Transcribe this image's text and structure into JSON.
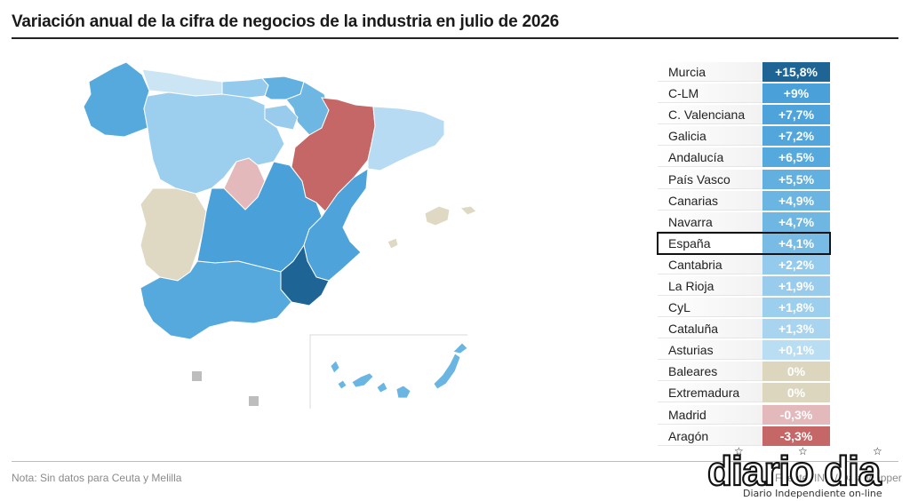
{
  "header": {
    "title": "Variación anual de la cifra de negocios de la industria en julio de 2026"
  },
  "colors": {
    "dark_blue": "#1e6596",
    "mid_blue": "#4aa0d8",
    "blue": "#5aaee0",
    "light_blue": "#8ec7ea",
    "pale_blue": "#b7dbf2",
    "very_pale_blue": "#cce5f5",
    "neutral": "#dfd8c2",
    "light_red": "#e3b9bb",
    "red": "#c56766",
    "islands_box": "#d9d9d9",
    "no_data": "#bdbdbd"
  },
  "ranking": [
    {
      "region": "Murcia",
      "value": "+15,8%",
      "color": "#1e6596"
    },
    {
      "region": "C-LM",
      "value": "+9%",
      "color": "#4aa0d8"
    },
    {
      "region": "C. Valenciana",
      "value": "+7,7%",
      "color": "#4ea3da"
    },
    {
      "region": "Galicia",
      "value": "+7,2%",
      "color": "#52a6db"
    },
    {
      "region": "Andalucía",
      "value": "+6,5%",
      "color": "#56a9dd"
    },
    {
      "region": "País Vasco",
      "value": "+5,5%",
      "color": "#62b0e0"
    },
    {
      "region": "Canarias",
      "value": "+4,9%",
      "color": "#6ab5e2"
    },
    {
      "region": "Navarra",
      "value": "+4,7%",
      "color": "#6eb7e3"
    },
    {
      "region": "España",
      "value": "+4,1%",
      "color": "#78bce5",
      "highlight": true
    },
    {
      "region": "Cantabria",
      "value": "+2,2%",
      "color": "#94caec"
    },
    {
      "region": "La Rioja",
      "value": "+1,9%",
      "color": "#99ccec"
    },
    {
      "region": "CyL",
      "value": "+1,8%",
      "color": "#9ccfee"
    },
    {
      "region": "Cataluña",
      "value": "+1,3%",
      "color": "#a8d4ef"
    },
    {
      "region": "Asturias",
      "value": "+0,1%",
      "color": "#b9ddf3"
    },
    {
      "region": "Baleares",
      "value": "0%",
      "color": "#ddd6bf"
    },
    {
      "region": "Extremadura",
      "value": "0%",
      "color": "#ddd6bf"
    },
    {
      "region": "Madrid",
      "value": "-0,3%",
      "color": "#e3b9bb"
    },
    {
      "region": "Aragón",
      "value": "-3,3%",
      "color": "#c56766"
    }
  ],
  "footer": {
    "note": "Nota: Sin datos para Ceuta y Melilla",
    "source": "Fuente: INE / Datawrapper",
    "logo_text": "diario dia",
    "logo_sub": "Diario Independiente on-line"
  }
}
